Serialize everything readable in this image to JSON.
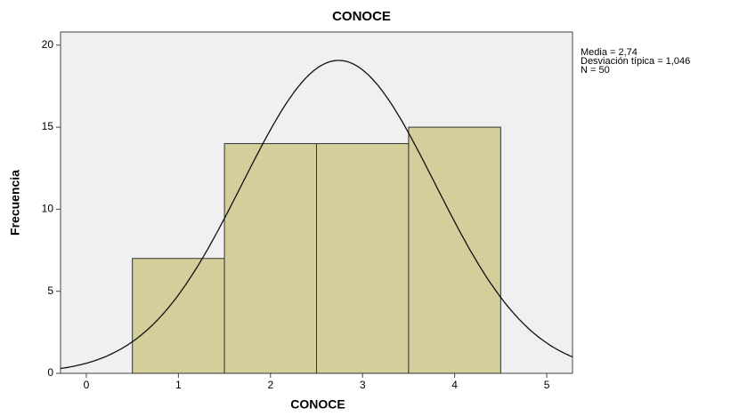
{
  "chart_data": {
    "type": "histogram",
    "title": "CONOCE",
    "x_label": "CONOCE",
    "y_label": "Frecuencia",
    "bins": [
      0.5,
      1.5,
      2.5,
      3.5,
      4.5
    ],
    "counts": [
      7,
      14,
      14,
      15
    ],
    "color": "#d3ce9a",
    "xlim": [
      -0.28,
      5.28
    ],
    "xticks": [
      0,
      1,
      2,
      3,
      4,
      5
    ],
    "ylim": [
      0,
      20.8
    ],
    "yticks": [
      0,
      5,
      10,
      15,
      20
    ],
    "normal_curve": {
      "mean": 2.74,
      "sd": 1.046,
      "n": 50
    },
    "stats_text": [
      "Media = 2,74",
      "Desviación típica = 1,046",
      "N = 50"
    ]
  }
}
